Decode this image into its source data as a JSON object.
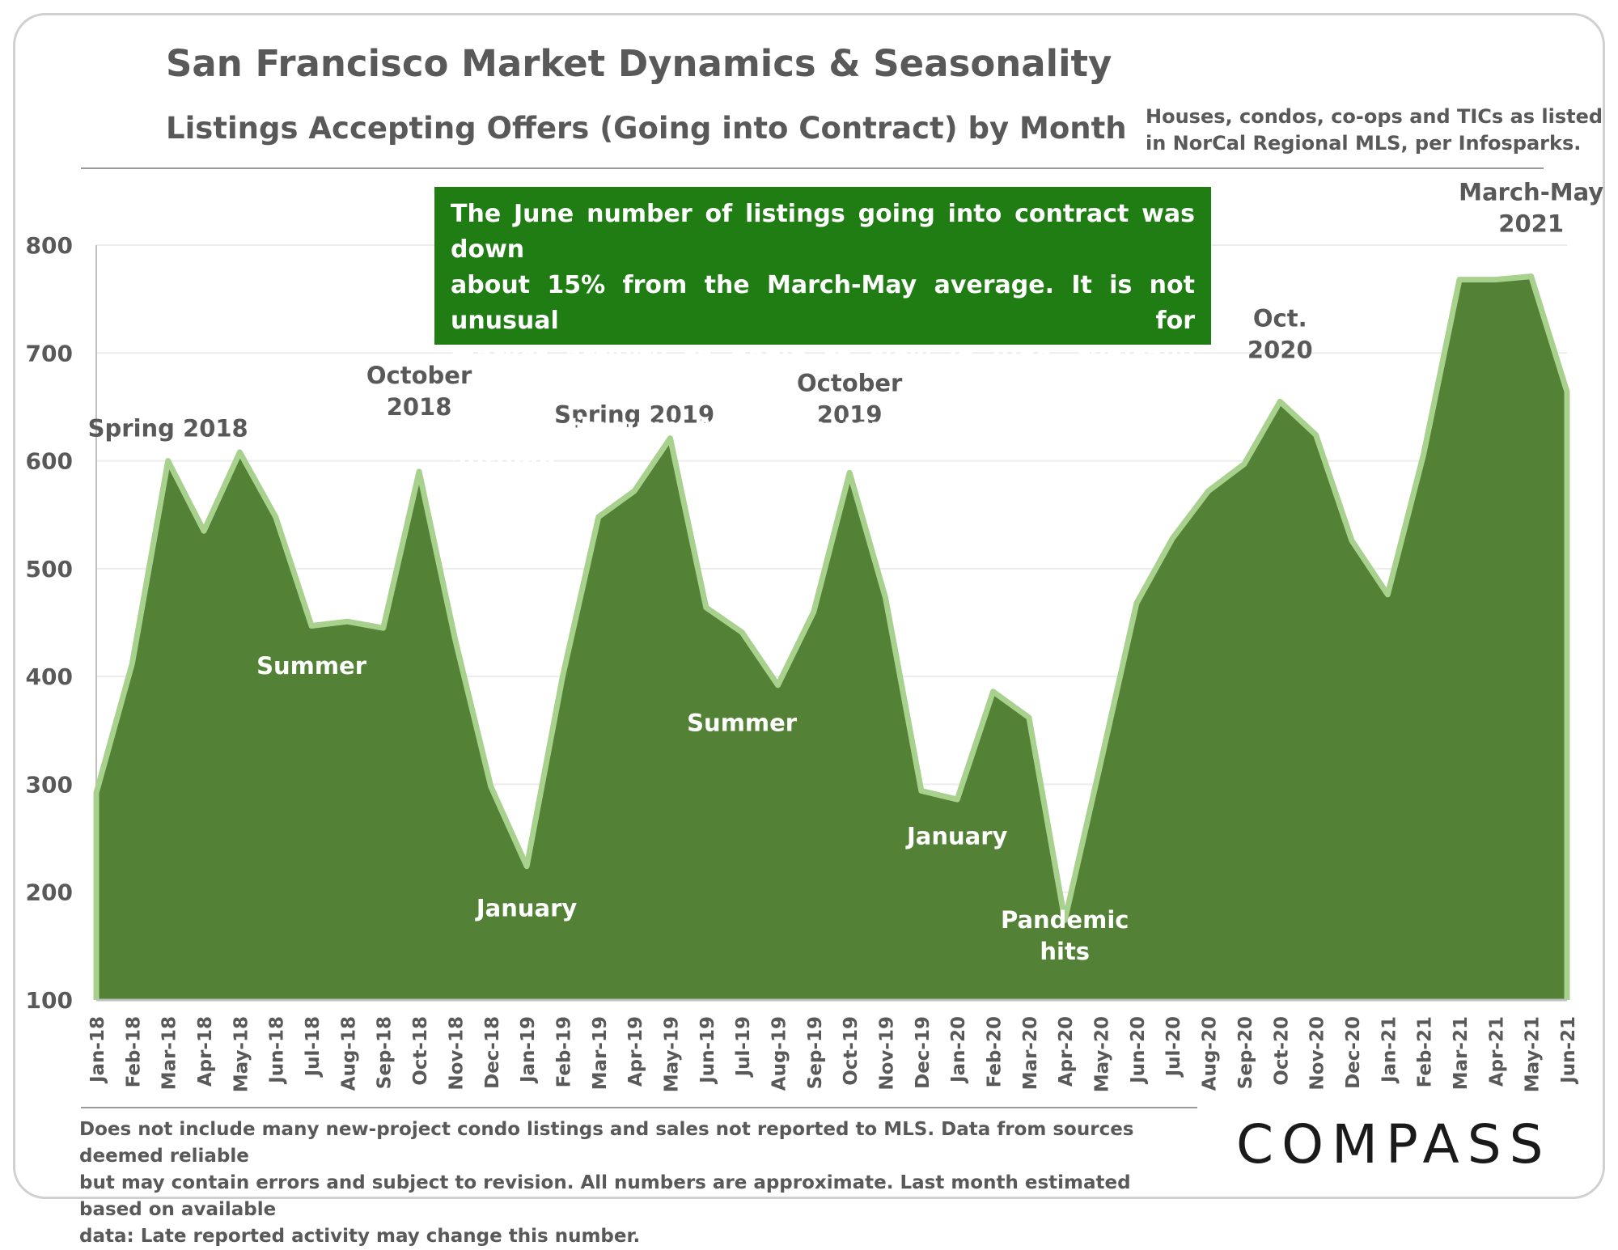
{
  "header": {
    "title": "San Francisco Market Dynamics & Seasonality",
    "subtitle": "Listings Accepting Offers (Going into Contract) by Month",
    "source_line1": "Houses, condos, co-ops and TICs as listed",
    "source_line2": "in NorCal Regional MLS, per Infosparks."
  },
  "callout": {
    "line1": "The June number of listings going into contract was down",
    "line2": "about 15% from the March-May average. It is not unusual for",
    "line3": "market activity to begin to slow in June, typically continuing",
    "line4": "to cool through August before picking up in early autumn."
  },
  "chart_data": {
    "type": "area",
    "title": "Listings Accepting Offers (Going into Contract) by Month",
    "xlabel": "",
    "ylabel": "",
    "ylim": [
      100,
      800
    ],
    "yticks": [
      100,
      200,
      300,
      400,
      500,
      600,
      700,
      800
    ],
    "grid": true,
    "colors": {
      "fill": "#538135",
      "line": "#a9d18e",
      "axis": "#bfbfbf",
      "text": "#595959"
    },
    "categories": [
      "Jan-18",
      "Feb-18",
      "Mar-18",
      "Apr-18",
      "May-18",
      "Jun-18",
      "Jul-18",
      "Aug-18",
      "Sep-18",
      "Oct-18",
      "Nov-18",
      "Dec-18",
      "Jan-19",
      "Feb-19",
      "Mar-19",
      "Apr-19",
      "May-19",
      "Jun-19",
      "Jul-19",
      "Aug-19",
      "Sep-19",
      "Oct-19",
      "Nov-19",
      "Dec-19",
      "Jan-20",
      "Feb-20",
      "Mar-20",
      "Apr-20",
      "May-20",
      "Jun-20",
      "Jul-20",
      "Aug-20",
      "Sep-20",
      "Oct-20",
      "Nov-20",
      "Dec-20",
      "Jan-21",
      "Feb-21",
      "Mar-21",
      "Apr-21",
      "May-21",
      "Jun-21"
    ],
    "values": [
      292,
      412,
      600,
      535,
      608,
      548,
      447,
      451,
      445,
      590,
      435,
      298,
      224,
      400,
      548,
      572,
      621,
      464,
      441,
      392,
      460,
      589,
      473,
      294,
      286,
      386,
      362,
      174,
      320,
      468,
      528,
      572,
      597,
      655,
      624,
      526,
      476,
      606,
      768,
      768,
      771,
      664
    ],
    "annotations": [
      {
        "text": [
          "Spring 2018"
        ],
        "x": "Mar-18",
        "y": 630
      },
      {
        "text": [
          "October",
          "2018"
        ],
        "x": "Oct-18",
        "y": 650
      },
      {
        "text": [
          "Summer"
        ],
        "x": "Jul-18",
        "y": 410
      },
      {
        "text": [
          "January"
        ],
        "x": "Jan-19",
        "y": 185
      },
      {
        "text": [
          "Spring 2019"
        ],
        "x": "Apr-19",
        "y": 643
      },
      {
        "text": [
          "October",
          "2019"
        ],
        "x": "Oct-19",
        "y": 643
      },
      {
        "text": [
          "Summer"
        ],
        "x": "Jul-19",
        "y": 357
      },
      {
        "text": [
          "January"
        ],
        "x": "Jan-20",
        "y": 252
      },
      {
        "text": [
          "Pandemic",
          "hits"
        ],
        "x": "Apr-20",
        "y": 145
      },
      {
        "text": [
          "Oct.",
          "2020"
        ],
        "x": "Oct-20",
        "y": 703
      },
      {
        "text": [
          "March-May",
          "2021"
        ],
        "x": "May-21",
        "y": 820
      }
    ]
  },
  "footnote": {
    "line1": "Does not include many new-project condo listings and sales not reported to MLS. Data from sources deemed reliable",
    "line2": "but may contain errors and subject to revision.  All numbers are approximate. Last month estimated based on available",
    "line3": "data: Late reported activity may change this number."
  },
  "logo": {
    "text": "COMPASS"
  }
}
